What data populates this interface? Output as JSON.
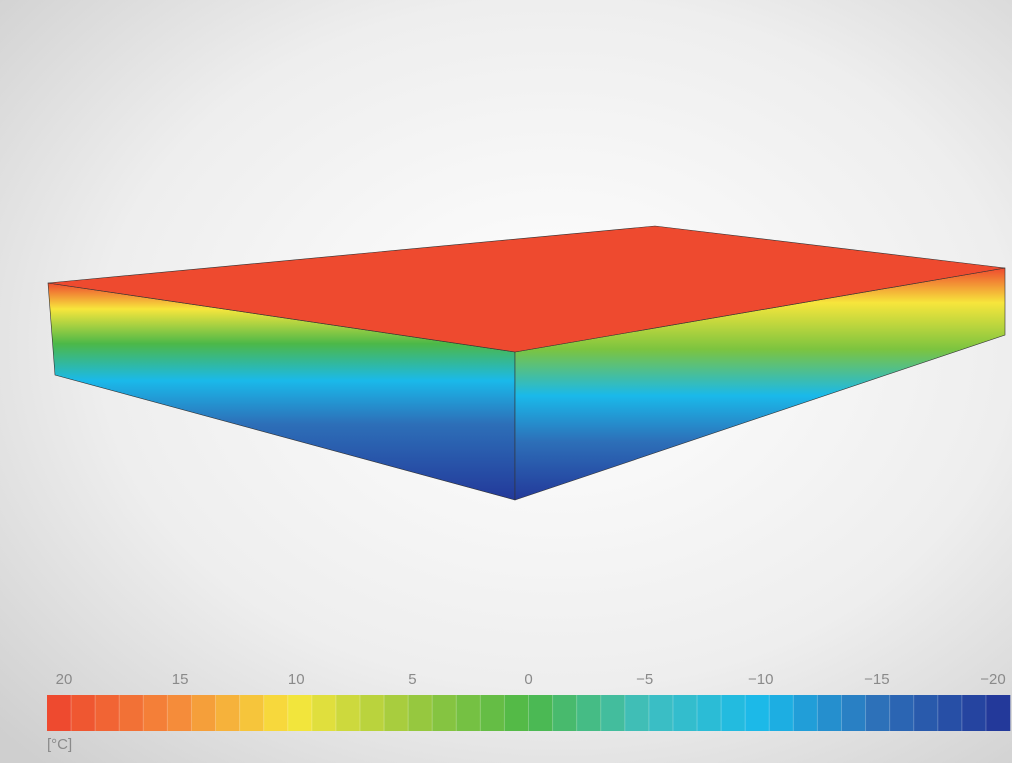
{
  "colorbar": {
    "ticks": [
      20,
      15,
      10,
      5,
      0,
      {
        "value": -5,
        "label": "−5"
      },
      {
        "value": -10,
        "label": "−10"
      },
      {
        "value": -15,
        "label": "−15"
      },
      {
        "value": -20,
        "label": "−20"
      }
    ],
    "range": [
      20,
      -20
    ],
    "unit": "[°C]",
    "cells": 40,
    "stops": [
      "#ee4a2f",
      "#f58a3a",
      "#f7e63c",
      "#9cc93e",
      "#4cb848",
      "#3fbfbf",
      "#1ab9ea",
      "#2d6fb8",
      "#23399a"
    ]
  }
}
